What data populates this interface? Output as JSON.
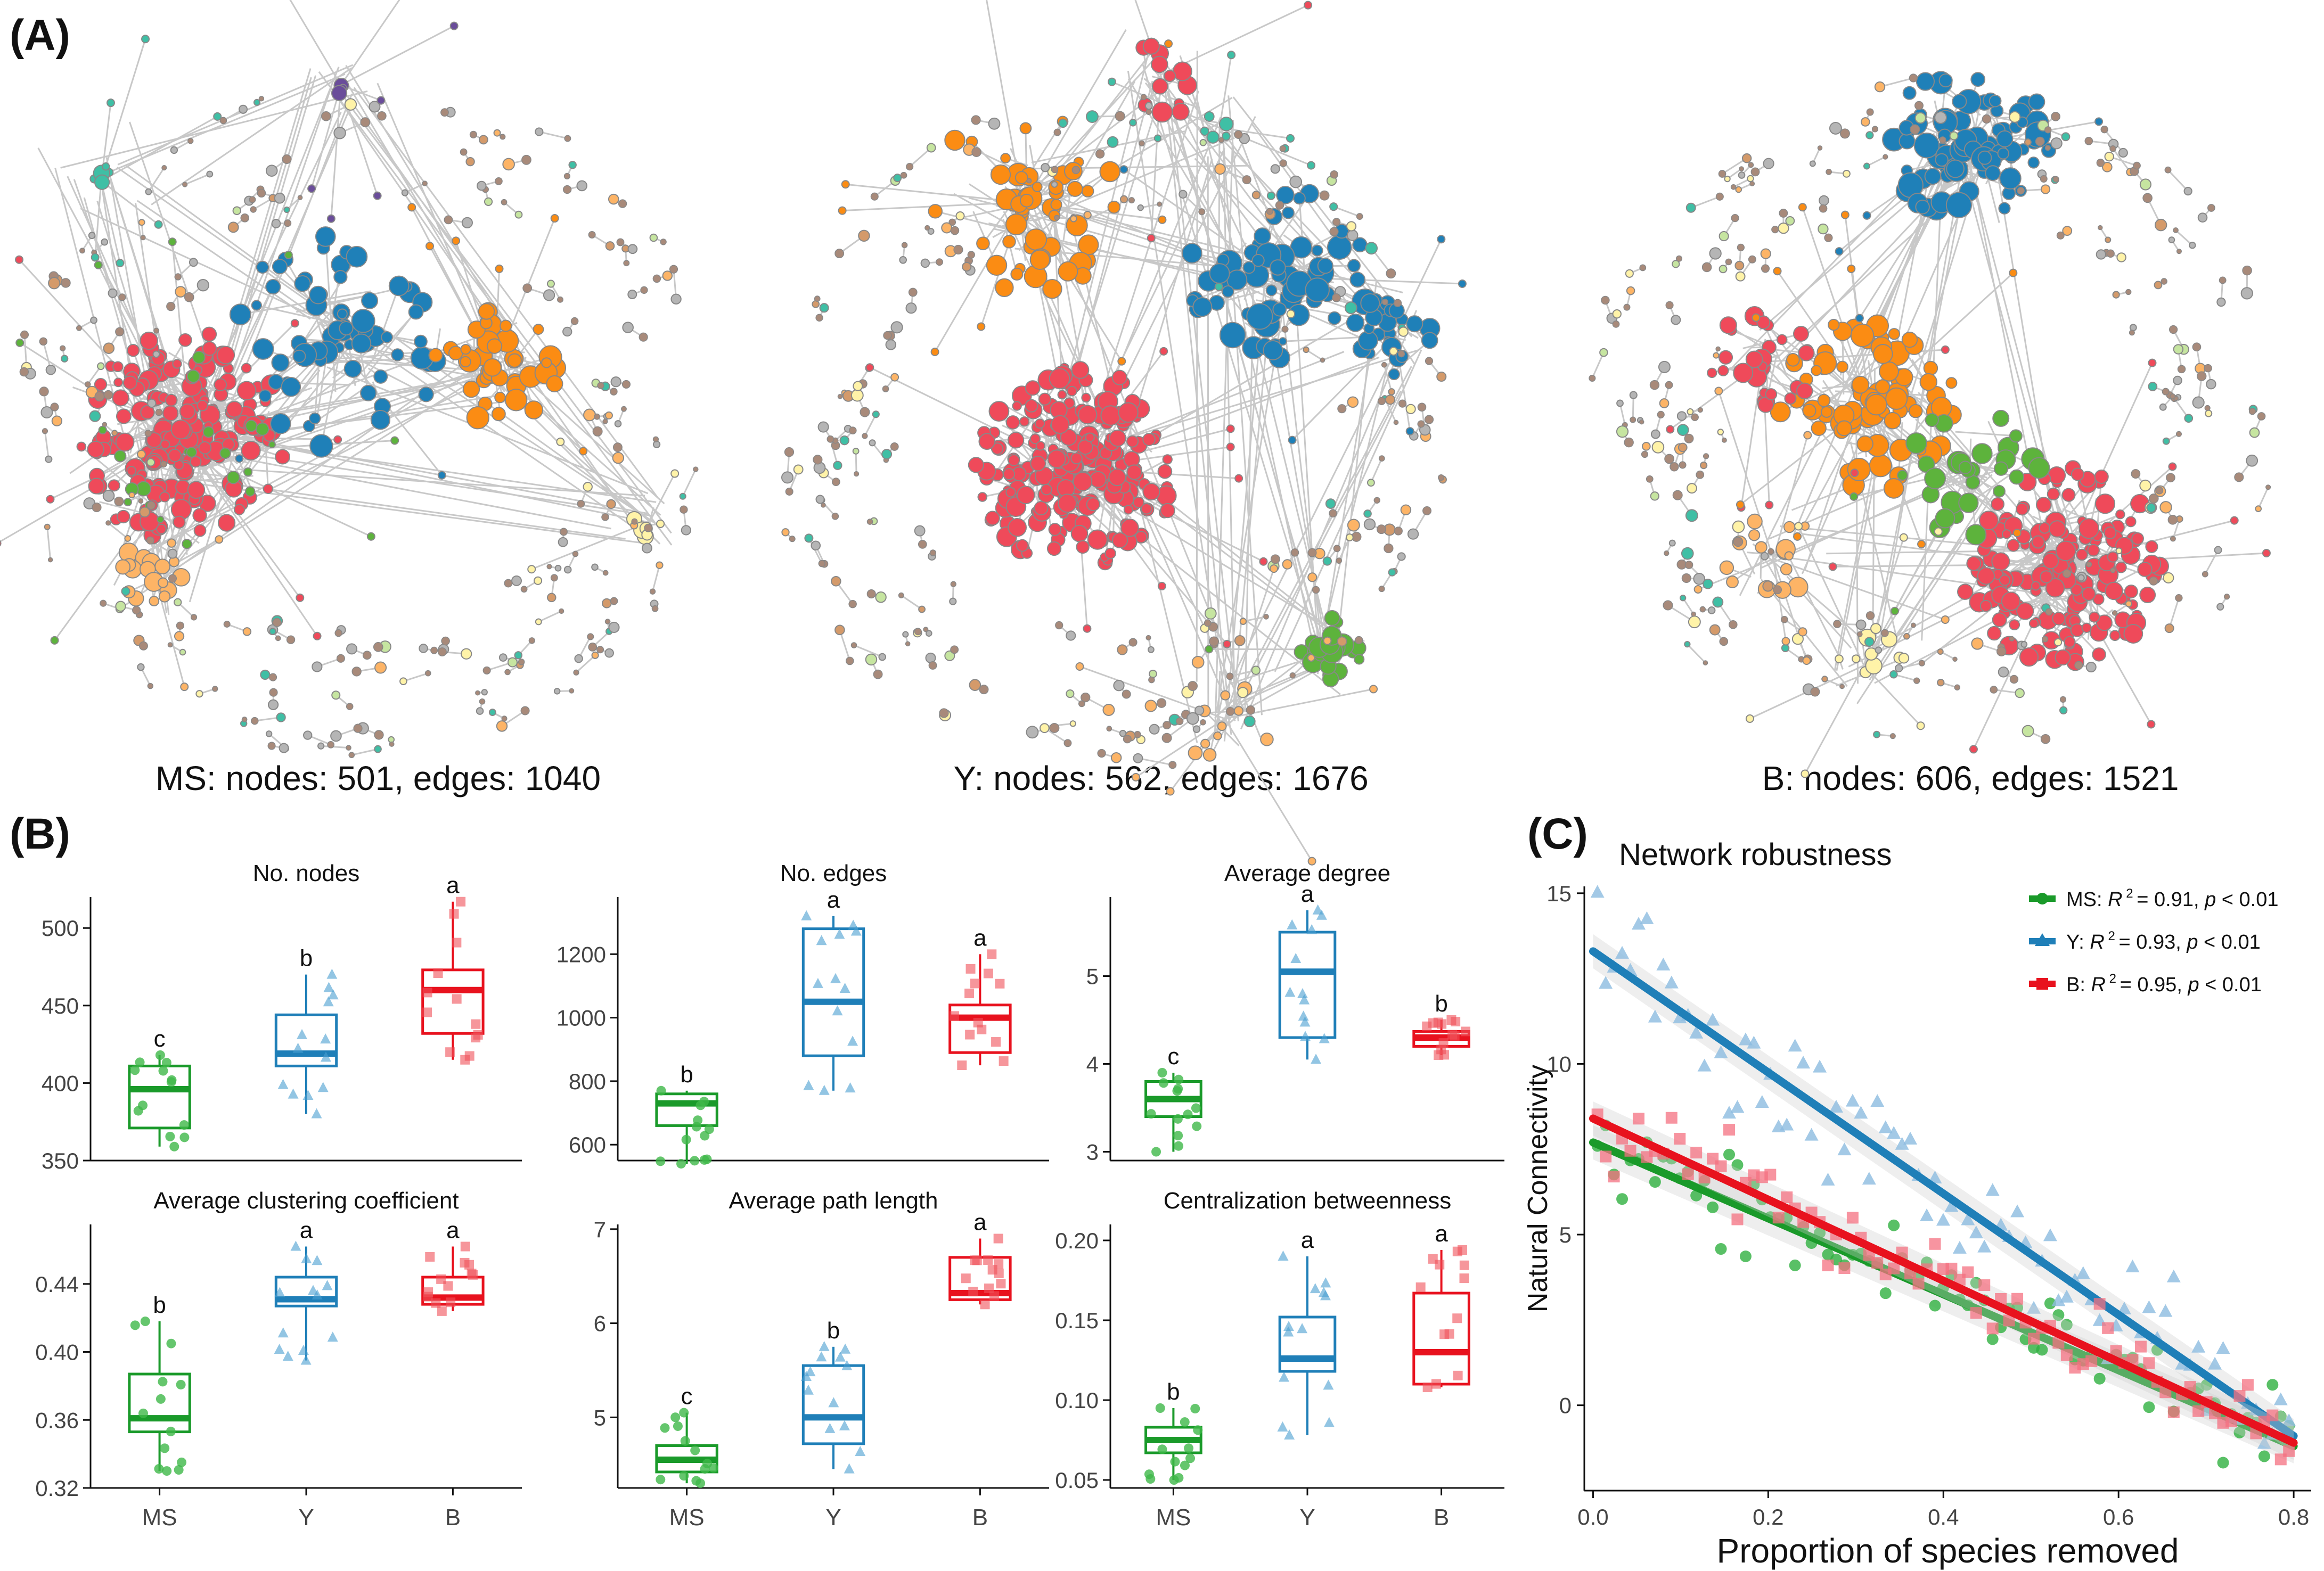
{
  "panel_labels": {
    "a": "(A)",
    "b": "(B)",
    "c": "(C)"
  },
  "networks": [
    {
      "caption": "MS: nodes: 501, edges: 1040"
    },
    {
      "caption": "Y: nodes: 562, edges: 1676"
    },
    {
      "caption": "B: nodes: 606, edges: 1521"
    }
  ],
  "colors": {
    "MS": "#1a9a2a",
    "Y": "#1f7fb8",
    "B": "#e8121e"
  },
  "chart_data": [
    {
      "type": "box",
      "title": "No. nodes",
      "categories": [
        "MS",
        "Y",
        "B"
      ],
      "ylim": [
        350,
        520
      ],
      "yticks": [
        350,
        400,
        450,
        500
      ],
      "ytick_labels": [
        "350",
        "400",
        "450",
        "500"
      ],
      "boxes": [
        {
          "q1": 371,
          "median": 396,
          "q3": 411,
          "min": 359,
          "max": 418,
          "letter": "c"
        },
        {
          "q1": 411,
          "median": 419,
          "q3": 444,
          "min": 380,
          "max": 470,
          "letter": "b"
        },
        {
          "q1": 432,
          "median": 460,
          "q3": 473,
          "min": 415,
          "max": 517,
          "letter": "a"
        }
      ]
    },
    {
      "type": "box",
      "title": "No. edges",
      "categories": [
        "MS",
        "Y",
        "B"
      ],
      "ylim": [
        550,
        1380
      ],
      "yticks": [
        600,
        800,
        1000,
        1200
      ],
      "ytick_labels": [
        "600",
        "800",
        "1000",
        "1200"
      ],
      "boxes": [
        {
          "q1": 660,
          "median": 730,
          "q3": 760,
          "min": 540,
          "max": 770,
          "letter": "b"
        },
        {
          "q1": 880,
          "median": 1050,
          "q3": 1280,
          "min": 770,
          "max": 1320,
          "letter": "a"
        },
        {
          "q1": 890,
          "median": 1000,
          "q3": 1040,
          "min": 850,
          "max": 1200,
          "letter": "a"
        }
      ]
    },
    {
      "type": "box",
      "title": "Average degree",
      "categories": [
        "MS",
        "Y",
        "B"
      ],
      "ylim": [
        2.9,
        5.9
      ],
      "yticks": [
        3,
        4,
        5
      ],
      "ytick_labels": [
        "3",
        "4",
        "5"
      ],
      "boxes": [
        {
          "q1": 3.4,
          "median": 3.6,
          "q3": 3.8,
          "min": 3.0,
          "max": 3.9,
          "letter": "c"
        },
        {
          "q1": 4.3,
          "median": 5.05,
          "q3": 5.5,
          "min": 4.05,
          "max": 5.75,
          "letter": "a"
        },
        {
          "q1": 4.2,
          "median": 4.3,
          "q3": 4.37,
          "min": 4.1,
          "max": 4.5,
          "letter": "b"
        }
      ]
    },
    {
      "type": "box",
      "title": "Average clustering coefficient",
      "categories": [
        "MS",
        "Y",
        "B"
      ],
      "ylim": [
        0.32,
        0.475
      ],
      "yticks": [
        0.32,
        0.36,
        0.4,
        0.44
      ],
      "ytick_labels": [
        "0.32",
        "0.36",
        "0.40",
        "0.44"
      ],
      "boxes": [
        {
          "q1": 0.353,
          "median": 0.361,
          "q3": 0.387,
          "min": 0.33,
          "max": 0.418,
          "letter": "b"
        },
        {
          "q1": 0.427,
          "median": 0.431,
          "q3": 0.444,
          "min": 0.395,
          "max": 0.462,
          "letter": "a"
        },
        {
          "q1": 0.428,
          "median": 0.432,
          "q3": 0.444,
          "min": 0.424,
          "max": 0.462,
          "letter": "a"
        }
      ]
    },
    {
      "type": "box",
      "title": "Average path length",
      "categories": [
        "MS",
        "Y",
        "B"
      ],
      "ylim": [
        4.25,
        7.05
      ],
      "yticks": [
        5,
        6,
        7
      ],
      "ytick_labels": [
        "5",
        "6",
        "7"
      ],
      "boxes": [
        {
          "q1": 4.42,
          "median": 4.55,
          "q3": 4.7,
          "min": 4.3,
          "max": 5.05,
          "letter": "c"
        },
        {
          "q1": 4.72,
          "median": 5.0,
          "q3": 5.55,
          "min": 4.45,
          "max": 5.75,
          "letter": "b"
        },
        {
          "q1": 6.25,
          "median": 6.32,
          "q3": 6.7,
          "min": 6.2,
          "max": 6.9,
          "letter": "a"
        }
      ]
    },
    {
      "type": "box",
      "title": "Centralization betweenness",
      "categories": [
        "MS",
        "Y",
        "B"
      ],
      "ylim": [
        0.045,
        0.21
      ],
      "yticks": [
        0.05,
        0.1,
        0.15,
        0.2
      ],
      "ytick_labels": [
        "0.05",
        "0.10",
        "0.15",
        "0.20"
      ],
      "boxes": [
        {
          "q1": 0.067,
          "median": 0.075,
          "q3": 0.083,
          "min": 0.05,
          "max": 0.095,
          "letter": "b"
        },
        {
          "q1": 0.118,
          "median": 0.126,
          "q3": 0.152,
          "min": 0.078,
          "max": 0.19,
          "letter": "a"
        },
        {
          "q1": 0.11,
          "median": 0.13,
          "q3": 0.167,
          "min": 0.108,
          "max": 0.194,
          "letter": "a"
        }
      ]
    },
    {
      "type": "scatter",
      "title": "Network robustness",
      "xlabel": "Proportion of species removed",
      "ylabel": "Natural Connectivity",
      "xlim": [
        -0.01,
        0.82
      ],
      "ylim": [
        -2.5,
        15.2
      ],
      "xticks": [
        0.0,
        0.2,
        0.4,
        0.6,
        0.8
      ],
      "xtick_labels": [
        "0.0",
        "0.2",
        "0.4",
        "0.6",
        "0.8"
      ],
      "yticks": [
        0,
        5,
        10,
        15
      ],
      "ytick_labels": [
        "0",
        "5",
        "10",
        "15"
      ],
      "series": [
        {
          "name": "MS",
          "legend_prefix": "MS: ",
          "r2": "= 0.91, ",
          "pval": "< 0.01",
          "marker": "circle",
          "line": [
            [
              0.0,
              7.7
            ],
            [
              0.8,
              -1.2
            ]
          ]
        },
        {
          "name": "Y",
          "legend_prefix": "Y: ",
          "r2": "= 0.93, ",
          "pval": "< 0.01",
          "marker": "triangle",
          "line": [
            [
              0.0,
              13.3
            ],
            [
              0.8,
              -0.9
            ]
          ]
        },
        {
          "name": "B",
          "legend_prefix": "B: ",
          "r2": "= 0.95, ",
          "pval": "< 0.01",
          "marker": "square",
          "line": [
            [
              0.0,
              8.4
            ],
            [
              0.8,
              -1.1
            ]
          ]
        }
      ],
      "legend_r_label": "R",
      "legend_r_sup": "2",
      "legend_p_label": "p"
    }
  ]
}
